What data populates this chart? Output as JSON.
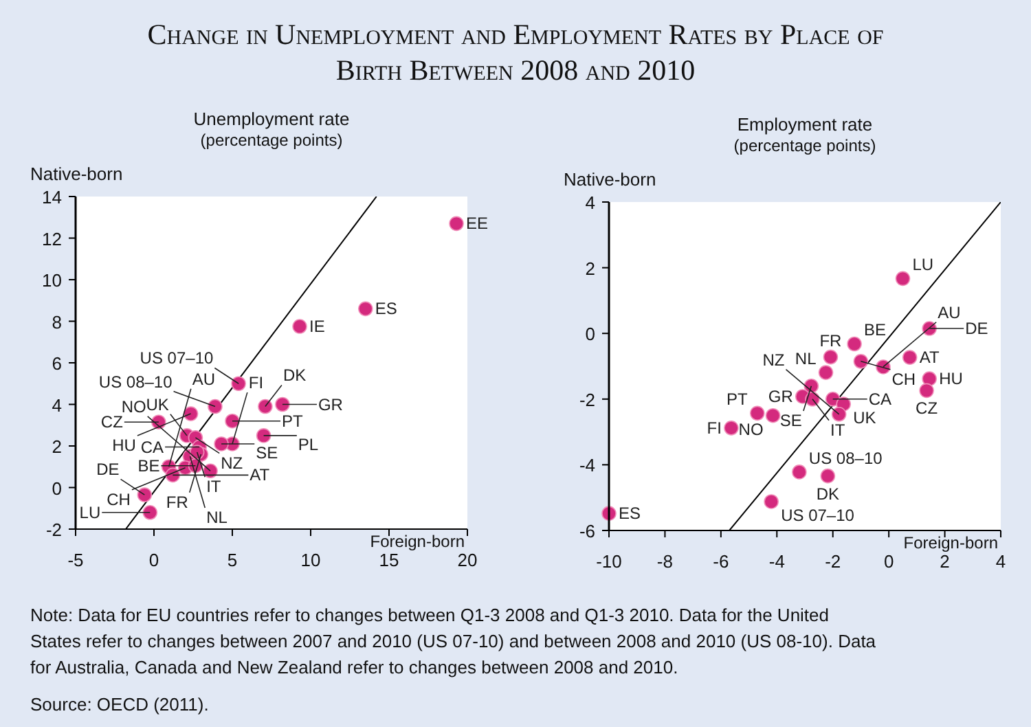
{
  "chart_data": [
    {
      "type": "other",
      "title": "Change in Unemployment and Employment Rates by Place of Birth Between 2008 and 2010",
      "annotations": [
        "Note: Data for EU countries refer to changes between Q1-3 2008 and Q1-3 2010. Data for the United States refer to changes between 2007 and 2010 (US 07-10) and between 2008 and 2010 (US 08-10). Data for Australia, Canada and New Zealand refer to changes between 2008 and 2010.",
        "Source: OECD (2011)."
      ]
    },
    {
      "type": "scatter",
      "title": "Unemployment rate",
      "subtitle": "(percentage points)",
      "xlabel": "Foreign-born",
      "ylabel": "Native-born",
      "xlim": [
        -5,
        20
      ],
      "xticks": [
        -5,
        0,
        5,
        10,
        15,
        20
      ],
      "ylim": [
        -2,
        14
      ],
      "yticks": [
        -2,
        0,
        2,
        4,
        6,
        8,
        10,
        12,
        14
      ],
      "grid": false,
      "series": [
        {
          "type": "scatter",
          "marker": "circle",
          "color": "#d42a7e",
          "x": [
            19.3,
            13.5,
            9.3,
            5.4,
            3.9,
            7.1,
            8.2,
            5.0,
            0.3,
            2.35,
            2.1,
            2.65,
            5.0,
            4.3,
            7.0,
            2.9,
            2.3,
            3.0,
            2.75,
            0.95,
            1.2,
            2.0,
            2.65,
            3.6,
            -0.6,
            -0.25
          ],
          "values": [
            12.7,
            8.6,
            7.75,
            5.0,
            3.9,
            3.9,
            4.0,
            3.2,
            3.15,
            3.55,
            2.5,
            2.4,
            2.1,
            2.1,
            2.5,
            1.95,
            1.5,
            1.6,
            1.7,
            1.0,
            0.6,
            0.95,
            1.05,
            0.8,
            -0.35,
            -1.2
          ]
        },
        {
          "type": "line",
          "color": "#000000",
          "x": [
            -1.8,
            14.2
          ],
          "values": [
            -2,
            14
          ]
        }
      ],
      "annotations": [
        {
          "text": "EE",
          "x": 19.3,
          "y": 12.7
        },
        {
          "text": "ES",
          "x": 13.5,
          "y": 8.6
        },
        {
          "text": "IE",
          "x": 9.3,
          "y": 7.75
        },
        {
          "text": "US 07–10",
          "x": 5.4,
          "y": 5.0
        },
        {
          "text": "US 08–10",
          "x": 3.9,
          "y": 3.9
        },
        {
          "text": "DK",
          "x": 7.1,
          "y": 3.9
        },
        {
          "text": "GR",
          "x": 8.2,
          "y": 4.0
        },
        {
          "text": "PT",
          "x": 5.0,
          "y": 3.2
        },
        {
          "text": "CZ",
          "x": 0.3,
          "y": 3.15
        },
        {
          "text": "HU",
          "x": 2.35,
          "y": 3.55
        },
        {
          "text": "UK",
          "x": 2.1,
          "y": 2.5
        },
        {
          "text": "NZ",
          "x": 2.65,
          "y": 2.4
        },
        {
          "text": "FI",
          "x": 5.0,
          "y": 2.1
        },
        {
          "text": "SE",
          "x": 4.3,
          "y": 2.1
        },
        {
          "text": "PL",
          "x": 7.0,
          "y": 2.5
        },
        {
          "text": "CA",
          "x": 2.9,
          "y": 1.95
        },
        {
          "text": "NL",
          "x": 2.3,
          "y": 1.5
        },
        {
          "text": "FR",
          "x": 3.0,
          "y": 1.6
        },
        {
          "text": "IT",
          "x": 2.75,
          "y": 1.7
        },
        {
          "text": "AU",
          "x": 0.95,
          "y": 1.0
        },
        {
          "text": "AT",
          "x": 1.2,
          "y": 0.6
        },
        {
          "text": "CH",
          "x": 2.0,
          "y": 0.95
        },
        {
          "text": "BE",
          "x": 2.65,
          "y": 1.05
        },
        {
          "text": "NO",
          "x": 3.6,
          "y": 0.8
        },
        {
          "text": "DE",
          "x": -0.6,
          "y": -0.35
        },
        {
          "text": "LU",
          "x": -0.25,
          "y": -1.2
        }
      ]
    },
    {
      "type": "scatter",
      "title": "Employment rate",
      "subtitle": "(percentage points)",
      "xlabel": "Foreign-born",
      "ylabel": "Native-born",
      "xlim": [
        -10,
        4
      ],
      "xticks": [
        -10,
        -8,
        -6,
        -4,
        -2,
        0,
        2,
        4
      ],
      "ylim": [
        -6,
        4
      ],
      "yticks": [
        -6,
        -4,
        -2,
        0,
        2,
        4
      ],
      "grid": false,
      "series": [
        {
          "type": "scatter",
          "marker": "circle",
          "color": "#d42a7e",
          "x": [
            0.5,
            1.45,
            -1.23,
            -2.08,
            -1.0,
            -0.2,
            0.75,
            -2.25,
            1.45,
            1.35,
            -2.77,
            -3.08,
            -2.73,
            -2.0,
            -1.62,
            -1.78,
            -4.7,
            -4.14,
            -5.63,
            -3.2,
            -2.18,
            -4.2,
            -10.0
          ],
          "values": [
            1.67,
            0.15,
            -0.32,
            -0.72,
            -0.85,
            -1.02,
            -0.73,
            -1.19,
            -1.38,
            -1.74,
            -1.6,
            -1.92,
            -2.0,
            -2.0,
            -2.15,
            -2.46,
            -2.43,
            -2.5,
            -2.88,
            -4.22,
            -4.34,
            -5.12,
            -5.48
          ]
        },
        {
          "type": "line",
          "color": "#000000",
          "x": [
            -5.7,
            4
          ],
          "values": [
            -6,
            4
          ]
        }
      ],
      "annotations": [
        {
          "text": "LU",
          "x": 0.5,
          "y": 1.67
        },
        {
          "text": "DE",
          "x": 1.45,
          "y": 0.15
        },
        {
          "text": "BE",
          "x": -1.23,
          "y": -0.32
        },
        {
          "text": "FR",
          "x": -2.08,
          "y": -0.72
        },
        {
          "text": "CH",
          "x": -1.0,
          "y": -0.85
        },
        {
          "text": "AU",
          "x": -0.2,
          "y": -1.02
        },
        {
          "text": "AT",
          "x": 0.75,
          "y": -0.73
        },
        {
          "text": "NL",
          "x": -2.25,
          "y": -1.19
        },
        {
          "text": "HU",
          "x": 1.45,
          "y": -1.38
        },
        {
          "text": "CZ",
          "x": 1.35,
          "y": -1.74
        },
        {
          "text": "SE",
          "x": -2.77,
          "y": -1.6
        },
        {
          "text": "GR",
          "x": -3.08,
          "y": -1.92
        },
        {
          "text": "IT",
          "x": -2.73,
          "y": -2.0
        },
        {
          "text": "CA",
          "x": -2.0,
          "y": -2.0
        },
        {
          "text": "UK",
          "x": -1.62,
          "y": -2.15
        },
        {
          "text": "NZ",
          "x": -1.78,
          "y": -2.46
        },
        {
          "text": "PT",
          "x": -4.7,
          "y": -2.43
        },
        {
          "text": "NO",
          "x": -4.14,
          "y": -2.5
        },
        {
          "text": "FI",
          "x": -5.63,
          "y": -2.88
        },
        {
          "text": "US 08–10",
          "x": -3.2,
          "y": -4.22
        },
        {
          "text": "DK",
          "x": -2.18,
          "y": -4.34
        },
        {
          "text": "US 07–10",
          "x": -4.2,
          "y": -5.12
        },
        {
          "text": "ES",
          "x": -10.0,
          "y": -5.48
        }
      ]
    }
  ]
}
